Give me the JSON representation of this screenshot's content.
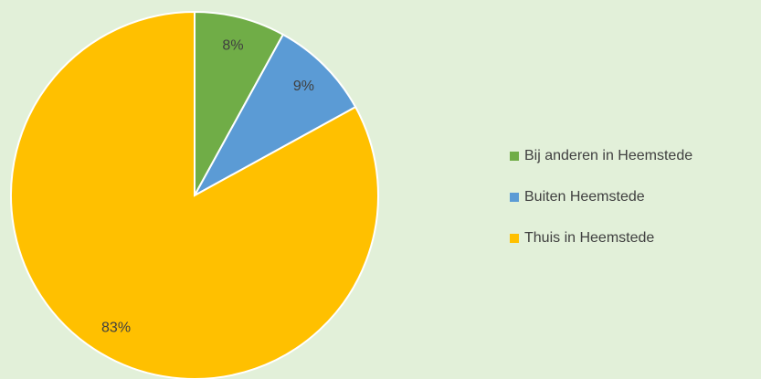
{
  "chart_data": {
    "type": "pie",
    "categories": [
      "Bij anderen in Heemstede",
      "Buiten Heemstede",
      "Thuis in Heemstede"
    ],
    "values": [
      8,
      9,
      83
    ],
    "value_labels": [
      "8%",
      "9%",
      "83%"
    ],
    "colors": [
      "#70ad47",
      "#5b9bd5",
      "#ffc000"
    ],
    "legend": "right"
  }
}
